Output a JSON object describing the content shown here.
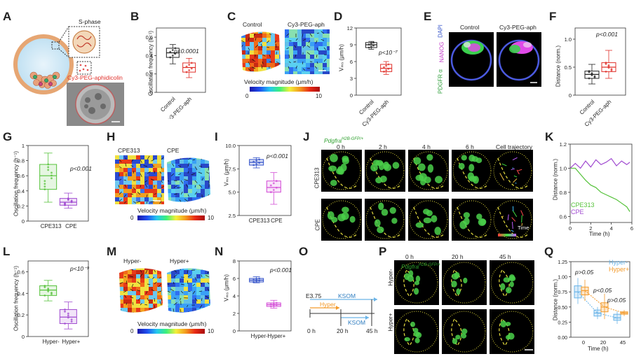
{
  "panels": {
    "A": {
      "letter": "A",
      "label_sphase": "S-phase",
      "label_drug": "Cy3-PEG-aphidicolin"
    },
    "B": {
      "letter": "B",
      "ylabel": "Oscillation frequency (h⁻¹)",
      "pvalue": "p<0.0001",
      "ticks": [
        "0",
        "0.2",
        "0.4",
        "0.6"
      ],
      "xlabels": [
        "Control",
        "Cy3-PEG-aph"
      ]
    },
    "C": {
      "letter": "C",
      "title_left": "Control",
      "title_right": "Cy3-PEG-aph",
      "cbar_label": "Velocity magnitude (μm/h)",
      "cbar_min": "0",
      "cbar_max": "10"
    },
    "D": {
      "letter": "D",
      "ylabel": "Vₘₛ (μm/h)",
      "pvalue": "p<10⁻⁷",
      "ticks": [
        "0",
        "3",
        "6",
        "9",
        "12"
      ],
      "xlabels": [
        "Control",
        "Cy3-PEG-aph"
      ]
    },
    "E": {
      "letter": "E",
      "title_left": "Control",
      "title_right": "Cy3-PEG-aph",
      "stain_pdgfr": "PDGFR α",
      "stain_nanog": "NANOG",
      "stain_dapi": "DAPI"
    },
    "F": {
      "letter": "F",
      "ylabel": "Distance (norm.)",
      "pvalue": "p<0.001",
      "ticks": [
        "0",
        "0.5",
        "1.0"
      ],
      "xlabels": [
        "Control",
        "Cy3-PEG-aph"
      ]
    },
    "G": {
      "letter": "G",
      "ylabel": "Oscillation frequency (h⁻¹)",
      "pvalue": "p<0.001",
      "ticks": [
        "0",
        "0.2",
        "0.4",
        "0.6",
        "0.8",
        "1"
      ],
      "xlabels": [
        "CPE313",
        "CPE"
      ]
    },
    "H": {
      "letter": "H",
      "title_left": "CPE313",
      "title_right": "CPE",
      "cbar_label": "Velocity magnitude (μm/h)",
      "cbar_min": "0",
      "cbar_max": "10"
    },
    "I": {
      "letter": "I",
      "ylabel": "Vₘₛ (μm/h)",
      "pvalue": "p<0.001",
      "ticks": [
        "2.5",
        "5.0",
        "7.5",
        "10.0"
      ],
      "xlabels": [
        "CPE313",
        "CPE"
      ]
    },
    "J": {
      "letter": "J",
      "genotype": "Pdgfra",
      "genotype_sup": "H2B-GFP/+",
      "times": [
        "0 h",
        "2 h",
        "4 h",
        "6 h",
        "Cell trajectory"
      ],
      "row_labels": [
        "CPE313",
        "CPE"
      ],
      "time_label": "Time"
    },
    "K": {
      "letter": "K",
      "ylabel": "Distance (norm.)",
      "xlabel": "Time (h)",
      "ticks": [
        "0.6",
        "0.8",
        "1.0",
        "1.2"
      ],
      "xticks": [
        "0",
        "2",
        "4",
        "6"
      ],
      "legend": [
        "CPE313",
        "CPE"
      ]
    },
    "L": {
      "letter": "L",
      "ylabel": "Oscillation frequency (h⁻¹)",
      "pvalue": "p<10⁻⁹",
      "ticks": [
        "0",
        "0.2",
        "0.4",
        "0.6"
      ],
      "xlabels": [
        "Hyper-",
        "Hyper+"
      ]
    },
    "M": {
      "letter": "M",
      "title_left": "Hyper-",
      "title_right": "Hyper+",
      "cbar_label": "Velocity magnitude (μm/h)",
      "cbar_min": "0",
      "cbar_max": "10"
    },
    "N": {
      "letter": "N",
      "ylabel": "Vₘₛ (μm/h)",
      "pvalue": "p<0.001",
      "ticks": [
        "0",
        "2",
        "4",
        "6",
        "8"
      ],
      "xlabels": [
        "Hyper-",
        "Hyper+"
      ]
    },
    "O": {
      "letter": "O",
      "stage": "E3.75",
      "ksom_top": "KSOM",
      "hyper": "Hyper",
      "ksom_bottom": "KSOM",
      "t0": "0 h",
      "t20": "20 h",
      "t45": "45 h"
    },
    "P": {
      "letter": "P",
      "genotype": "Pdgfra",
      "genotype_sup": "H2B-GFP/+",
      "times": [
        "0 h",
        "20 h",
        "45 h"
      ],
      "row_labels": [
        "Hyper-",
        "Hyper+"
      ]
    },
    "Q": {
      "letter": "Q",
      "ylabel": "Distance (norm.)",
      "xlabel": "Time (h)",
      "ticks": [
        "0.00",
        "0.25",
        "0.50",
        "0.75",
        "1.00",
        "1.25"
      ],
      "xticks": [
        "0",
        "20",
        "45"
      ],
      "legend": [
        "Hyper-",
        "Hyper+"
      ],
      "pvals": [
        "p>0.05",
        "p<0.05",
        "p>0.05"
      ]
    }
  },
  "colors": {
    "black": "#222222",
    "red": "#e0302a",
    "green": "#55c23a",
    "purple": "#a04ad0",
    "blue": "#2f4fc8",
    "magenta": "#d34bd6",
    "lightblue": "#6ab4e8",
    "orange": "#f39a2a"
  },
  "chart_data": [
    {
      "type": "box",
      "panel": "B",
      "categories": [
        "Control",
        "Cy3-PEG-aph"
      ],
      "medians": [
        0.43,
        0.27
      ],
      "q1": [
        0.38,
        0.22
      ],
      "q3": [
        0.48,
        0.32
      ],
      "whisker_low": [
        0.31,
        0.16
      ],
      "whisker_high": [
        0.52,
        0.37
      ],
      "ylim": [
        0,
        0.7
      ]
    },
    {
      "type": "box",
      "panel": "D",
      "categories": [
        "Control",
        "Cy3-PEG-aph"
      ],
      "medians": [
        9.0,
        4.8
      ],
      "q1": [
        8.5,
        4.2
      ],
      "q3": [
        9.4,
        5.5
      ],
      "whisker_low": [
        8.2,
        3.7
      ],
      "whisker_high": [
        9.6,
        6.0
      ],
      "ylim": [
        0,
        12
      ]
    },
    {
      "type": "box",
      "panel": "F",
      "categories": [
        "Control",
        "Cy3-PEG-aph"
      ],
      "medians": [
        0.37,
        0.5
      ],
      "q1": [
        0.3,
        0.42
      ],
      "q3": [
        0.43,
        0.58
      ],
      "whisker_low": [
        0.2,
        0.3
      ],
      "whisker_high": [
        0.55,
        0.8
      ],
      "ylim": [
        0,
        1.2
      ]
    },
    {
      "type": "box",
      "panel": "G",
      "categories": [
        "CPE313",
        "CPE"
      ],
      "medians": [
        0.6,
        0.25
      ],
      "q1": [
        0.42,
        0.21
      ],
      "q3": [
        0.75,
        0.3
      ],
      "whisker_low": [
        0.25,
        0.17
      ],
      "whisker_high": [
        0.9,
        0.37
      ],
      "ylim": [
        0,
        1
      ]
    },
    {
      "type": "box",
      "panel": "I",
      "categories": [
        "CPE313",
        "CPE"
      ],
      "medians": [
        8.2,
        5.5
      ],
      "q1": [
        7.9,
        5.0
      ],
      "q3": [
        8.5,
        6.2
      ],
      "whisker_low": [
        7.6,
        3.7
      ],
      "whisker_high": [
        8.7,
        7.1
      ],
      "ylim": [
        2.5,
        10
      ]
    },
    {
      "type": "box",
      "panel": "L",
      "categories": [
        "Hyper-",
        "Hyper+"
      ],
      "medians": [
        0.43,
        0.18
      ],
      "q1": [
        0.38,
        0.12
      ],
      "q3": [
        0.47,
        0.25
      ],
      "whisker_low": [
        0.33,
        0.07
      ],
      "whisker_high": [
        0.52,
        0.32
      ],
      "ylim": [
        0,
        0.7
      ]
    },
    {
      "type": "box",
      "panel": "N",
      "categories": [
        "Hyper-",
        "Hyper+"
      ],
      "medians": [
        5.8,
        3.0
      ],
      "q1": [
        5.6,
        2.8
      ],
      "q3": [
        6.0,
        3.2
      ],
      "whisker_low": [
        5.5,
        2.6
      ],
      "whisker_high": [
        6.2,
        3.5
      ],
      "ylim": [
        0,
        8
      ]
    },
    {
      "type": "line",
      "panel": "K",
      "xlabel": "Time (h)",
      "ylabel": "Distance (norm.)",
      "xlim": [
        0,
        6
      ],
      "ylim": [
        0.55,
        1.2
      ],
      "series": [
        {
          "name": "CPE313",
          "x": [
            0,
            0.5,
            1,
            1.5,
            2,
            2.5,
            3,
            3.5,
            4,
            4.5,
            5,
            5.5,
            5.8
          ],
          "y": [
            1.0,
            1.0,
            0.95,
            0.9,
            0.86,
            0.84,
            0.8,
            0.78,
            0.76,
            0.74,
            0.71,
            0.68,
            0.64
          ]
        },
        {
          "name": "CPE",
          "x": [
            0,
            0.5,
            1,
            1.5,
            2,
            2.5,
            3,
            3.5,
            4,
            4.5,
            5,
            5.5,
            5.8
          ],
          "y": [
            1.0,
            1.04,
            1.0,
            1.06,
            1.01,
            1.07,
            1.03,
            1.05,
            1.08,
            1.02,
            1.06,
            1.03,
            1.05
          ]
        }
      ]
    },
    {
      "type": "box",
      "panel": "Q",
      "categories": [
        "0",
        "20",
        "45"
      ],
      "ylim": [
        0,
        1.25
      ],
      "series": [
        {
          "name": "Hyper-",
          "medians": [
            0.75,
            0.4,
            0.32
          ],
          "q1": [
            0.65,
            0.35,
            0.28
          ],
          "q3": [
            0.85,
            0.45,
            0.38
          ],
          "whisker_low": [
            0.55,
            0.3,
            0.22
          ],
          "whisker_high": [
            0.98,
            0.5,
            0.43
          ]
        },
        {
          "name": "Hyper+",
          "medians": [
            0.77,
            0.5,
            0.4
          ],
          "q1": [
            0.7,
            0.42,
            0.38
          ],
          "q3": [
            0.83,
            0.57,
            0.42
          ],
          "whisker_low": [
            0.6,
            0.3,
            0.35
          ],
          "whisker_high": [
            0.95,
            0.72,
            0.45
          ]
        }
      ]
    }
  ]
}
